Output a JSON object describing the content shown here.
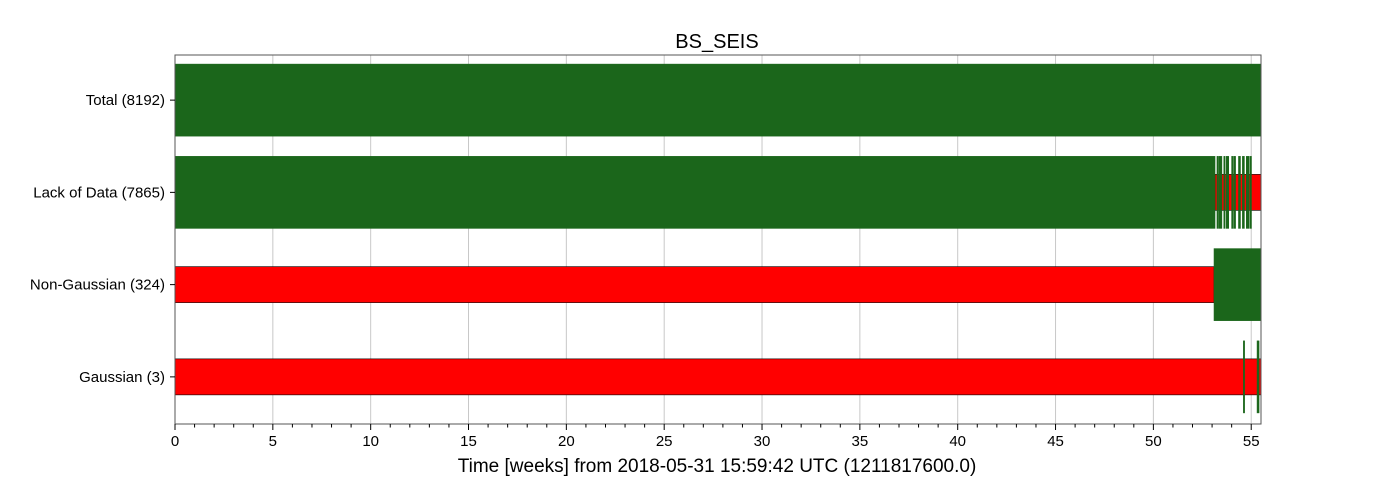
{
  "chart_data": {
    "type": "segments",
    "title": "BS_SEIS",
    "xlabel": "Time [weeks] from 2018-05-31 15:59:42 UTC (1211817600.0)",
    "ylabel": "",
    "xlim": [
      0,
      55.5
    ],
    "xticks": [
      0,
      5,
      10,
      15,
      20,
      25,
      30,
      35,
      40,
      45,
      50,
      55
    ],
    "grid": true,
    "colors": {
      "active": "#1b661b",
      "inactive": "#ff0000"
    },
    "rows": [
      {
        "label": "Total (8192)",
        "style": "tall",
        "base": "active",
        "active": [
          [
            0,
            55.5
          ]
        ]
      },
      {
        "label": "Lack of Data (7865)",
        "style": "tall",
        "base": "active",
        "inactive_short": [
          [
            53.15,
            55.5
          ]
        ],
        "active": [
          [
            0,
            53.15
          ],
          [
            53.25,
            53.3
          ],
          [
            53.35,
            53.5
          ],
          [
            53.6,
            53.65
          ],
          [
            53.72,
            53.85
          ],
          [
            54.0,
            54.05
          ],
          [
            54.1,
            54.2
          ],
          [
            54.35,
            54.45
          ],
          [
            54.55,
            54.65
          ],
          [
            54.75,
            54.9
          ],
          [
            54.95,
            55.0
          ]
        ]
      },
      {
        "label": "Non-Gaussian (324)",
        "style": "short",
        "base": "inactive",
        "inactive_short": [
          [
            0,
            53.1
          ]
        ],
        "active": [
          [
            53.1,
            55.5
          ]
        ]
      },
      {
        "label": "Gaussian (3)",
        "style": "short",
        "base": "inactive",
        "inactive_short": [
          [
            0,
            55.5
          ]
        ],
        "active": [
          [
            54.6,
            54.65
          ],
          [
            55.3,
            55.4
          ]
        ]
      }
    ]
  }
}
